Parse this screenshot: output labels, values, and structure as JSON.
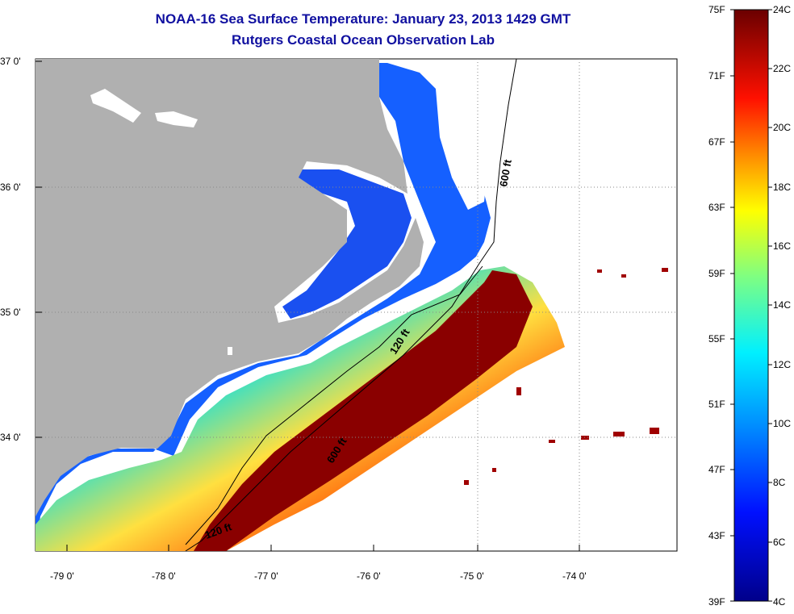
{
  "title": {
    "line1": "NOAA-16 Sea Surface Temperature:  January 23, 2013 1429 GMT",
    "line2": "Rutgers Coastal Ocean Observation Lab"
  },
  "map": {
    "lat_labels": [
      "37 0'",
      "36 0'",
      "35 0'",
      "34 0'"
    ],
    "lon_labels": [
      "-79 0'",
      "-78 0'",
      "-77 0'",
      "-76 0'",
      "-75 0'",
      "-74 0'"
    ],
    "contour_labels": [
      "600 ft",
      "120 ft",
      "600 ft",
      "120 ft"
    ],
    "land_color": "#b0b0b0"
  },
  "colorbar": {
    "fahrenheit_labels": [
      "75F",
      "71F",
      "67F",
      "63F",
      "59F",
      "55F",
      "51F",
      "47F",
      "43F",
      "39F"
    ],
    "celsius_labels": [
      "24C",
      "22C",
      "20C",
      "18C",
      "16C",
      "14C",
      "12C",
      "10C",
      "8C",
      "6C",
      "4C"
    ],
    "colors": [
      "#7a0000",
      "#d01010",
      "#ff6000",
      "#ffd000",
      "#80ff80",
      "#00e0ff",
      "#0060ff",
      "#0000b0"
    ]
  }
}
